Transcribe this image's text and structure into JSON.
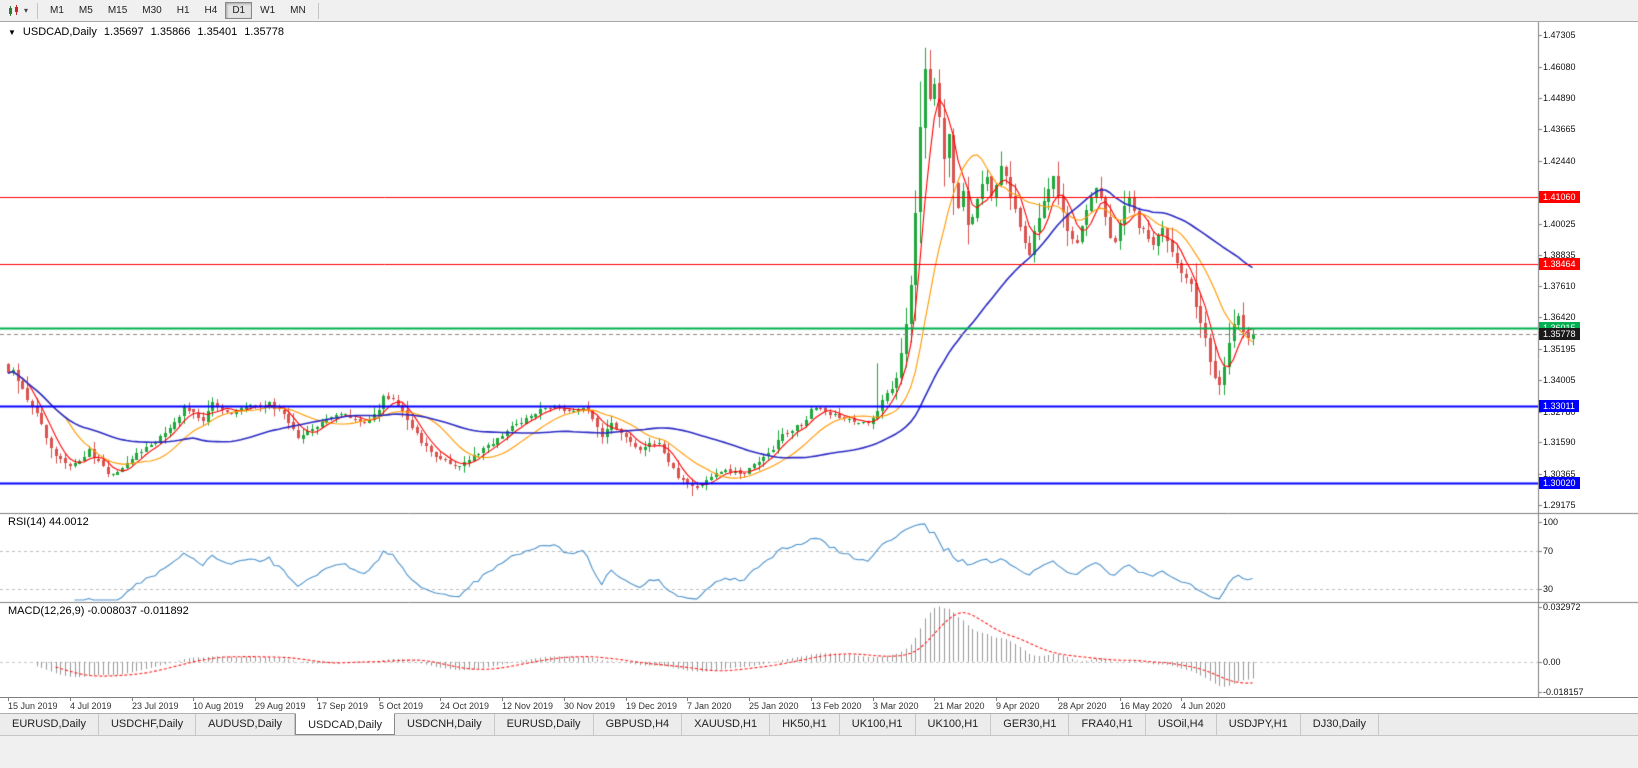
{
  "toolbar": {
    "timeframes": [
      "M1",
      "M5",
      "M15",
      "M30",
      "H1",
      "H4",
      "D1",
      "W1",
      "MN"
    ],
    "active_timeframe": "D1"
  },
  "chart_header": {
    "expander": "▼",
    "symbol": "USDCAD,Daily",
    "open": "1.35697",
    "high": "1.35866",
    "low": "1.35401",
    "close": "1.35778"
  },
  "colors": {
    "candle_up": "#1fa83c",
    "candle_down": "#d9534f",
    "ma_fast": "#ff0000",
    "ma_medium": "#ff9900",
    "ma_slow": "#2b2bc4",
    "current_price_line": "#8a8a8a",
    "current_price_tag_bg": "#1a1a1a",
    "rsi_line": "#4f94cd",
    "rsi_level_line": "#c0c0c0",
    "macd_hist": "#999999",
    "macd_signal": "#ff2020",
    "pane_border": "#808080"
  },
  "tabs": {
    "active_index": 3,
    "items": [
      {
        "label": "EURUSD,Daily"
      },
      {
        "label": "USDCHF,Daily"
      },
      {
        "label": "AUDUSD,Daily"
      },
      {
        "label": "USDCAD,Daily"
      },
      {
        "label": "USDCNH,Daily"
      },
      {
        "label": "EURUSD,Daily"
      },
      {
        "label": "GBPUSD,H4"
      },
      {
        "label": "XAUUSD,H1"
      },
      {
        "label": "HK50,H1"
      },
      {
        "label": "UK100,H1"
      },
      {
        "label": "UK100,H1"
      },
      {
        "label": "GER30,H1"
      },
      {
        "label": "FRA40,H1"
      },
      {
        "label": "USOil,H4"
      },
      {
        "label": "USDJPY,H1"
      },
      {
        "label": "DJ30,Daily"
      }
    ]
  },
  "chart_data": {
    "type": "candlestick",
    "symbol": "USDCAD",
    "timeframe": "Daily",
    "ohlc_display": {
      "open": 1.35697,
      "high": 1.35866,
      "low": 1.35401,
      "close": 1.35778
    },
    "visible_price_range": [
      1.2887,
      1.4781
    ],
    "y_ticks": [
      "1.47305",
      "1.46080",
      "1.44890",
      "1.43665",
      "1.42440",
      "1.40025",
      "1.38835",
      "1.37610",
      "1.36420",
      "1.35195",
      "1.34005",
      "1.32780",
      "1.31590",
      "1.30365",
      "1.29175"
    ],
    "x_ticks": [
      {
        "label": "15 Jun 2019",
        "i": 0
      },
      {
        "label": "4 Jul 2019",
        "i": 13
      },
      {
        "label": "23 Jul 2019",
        "i": 26
      },
      {
        "label": "10 Aug 2019",
        "i": 39
      },
      {
        "label": "29 Aug 2019",
        "i": 52
      },
      {
        "label": "17 Sep 2019",
        "i": 65
      },
      {
        "label": "5 Oct 2019",
        "i": 78
      },
      {
        "label": "24 Oct 2019",
        "i": 91
      },
      {
        "label": "12 Nov 2019",
        "i": 104
      },
      {
        "label": "30 Nov 2019",
        "i": 117
      },
      {
        "label": "19 Dec 2019",
        "i": 130
      },
      {
        "label": "7 Jan 2020",
        "i": 143
      },
      {
        "label": "25 Jan 2020",
        "i": 156
      },
      {
        "label": "13 Feb 2020",
        "i": 169
      },
      {
        "label": "3 Mar 2020",
        "i": 182
      },
      {
        "label": "21 Mar 2020",
        "i": 195
      },
      {
        "label": "9 Apr 2020",
        "i": 208
      },
      {
        "label": "28 Apr 2020",
        "i": 221
      },
      {
        "label": "16 May 2020",
        "i": 234
      },
      {
        "label": "4 Jun 2020",
        "i": 247
      }
    ],
    "candle_count": 263,
    "close_path_anchors": [
      [
        0,
        1.342
      ],
      [
        1,
        1.3432
      ],
      [
        3,
        1.336
      ],
      [
        5,
        1.33
      ],
      [
        7,
        1.323
      ],
      [
        9,
        1.314
      ],
      [
        11,
        1.309
      ],
      [
        13,
        1.307
      ],
      [
        15,
        1.309
      ],
      [
        17,
        1.313
      ],
      [
        19,
        1.308
      ],
      [
        21,
        1.3035
      ],
      [
        23,
        1.305
      ],
      [
        25,
        1.3075
      ],
      [
        27,
        1.311
      ],
      [
        29,
        1.3135
      ],
      [
        31,
        1.316
      ],
      [
        33,
        1.3195
      ],
      [
        35,
        1.324
      ],
      [
        37,
        1.33
      ],
      [
        39,
        1.327
      ],
      [
        41,
        1.3245
      ],
      [
        43,
        1.331
      ],
      [
        45,
        1.329
      ],
      [
        47,
        1.327
      ],
      [
        49,
        1.329
      ],
      [
        51,
        1.33
      ],
      [
        53,
        1.3295
      ],
      [
        55,
        1.331
      ],
      [
        57,
        1.328
      ],
      [
        59,
        1.324
      ],
      [
        61,
        1.318
      ],
      [
        63,
        1.3195
      ],
      [
        65,
        1.3215
      ],
      [
        67,
        1.325
      ],
      [
        69,
        1.326
      ],
      [
        71,
        1.3265
      ],
      [
        73,
        1.3245
      ],
      [
        75,
        1.3235
      ],
      [
        77,
        1.326
      ],
      [
        79,
        1.333
      ],
      [
        81,
        1.332
      ],
      [
        83,
        1.329
      ],
      [
        85,
        1.321
      ],
      [
        87,
        1.3165
      ],
      [
        89,
        1.313
      ],
      [
        91,
        1.3095
      ],
      [
        93,
        1.3075
      ],
      [
        95,
        1.3065
      ],
      [
        97,
        1.309
      ],
      [
        99,
        1.312
      ],
      [
        101,
        1.3145
      ],
      [
        103,
        1.318
      ],
      [
        105,
        1.3205
      ],
      [
        107,
        1.323
      ],
      [
        109,
        1.3255
      ],
      [
        111,
        1.3275
      ],
      [
        113,
        1.329
      ],
      [
        115,
        1.33
      ],
      [
        117,
        1.3285
      ],
      [
        119,
        1.328
      ],
      [
        121,
        1.33
      ],
      [
        123,
        1.324
      ],
      [
        125,
        1.3175
      ],
      [
        127,
        1.323
      ],
      [
        129,
        1.32
      ],
      [
        131,
        1.3165
      ],
      [
        133,
        1.3135
      ],
      [
        135,
        1.315
      ],
      [
        137,
        1.316
      ],
      [
        139,
        1.308
      ],
      [
        141,
        1.302
      ],
      [
        143,
        1.299
      ],
      [
        145,
        1.2985
      ],
      [
        147,
        1.301
      ],
      [
        149,
        1.3035
      ],
      [
        151,
        1.305
      ],
      [
        153,
        1.3045
      ],
      [
        155,
        1.304
      ],
      [
        157,
        1.307
      ],
      [
        159,
        1.31
      ],
      [
        161,
        1.313
      ],
      [
        163,
        1.319
      ],
      [
        165,
        1.3205
      ],
      [
        167,
        1.323
      ],
      [
        169,
        1.328
      ],
      [
        171,
        1.329
      ],
      [
        173,
        1.327
      ],
      [
        175,
        1.3255
      ],
      [
        177,
        1.3245
      ],
      [
        179,
        1.3235
      ],
      [
        181,
        1.3225
      ],
      [
        183,
        1.329
      ],
      [
        185,
        1.334
      ],
      [
        187,
        1.339
      ],
      [
        189,
        1.362
      ],
      [
        190,
        1.378
      ],
      [
        191,
        1.405
      ],
      [
        192,
        1.438
      ],
      [
        193,
        1.46
      ],
      [
        194,
        1.448
      ],
      [
        195,
        1.455
      ],
      [
        196,
        1.442
      ],
      [
        197,
        1.425
      ],
      [
        198,
        1.434
      ],
      [
        199,
        1.416
      ],
      [
        200,
        1.406
      ],
      [
        201,
        1.412
      ],
      [
        202,
        1.399
      ],
      [
        203,
        1.403
      ],
      [
        204,
        1.409
      ],
      [
        205,
        1.415
      ],
      [
        206,
        1.419
      ],
      [
        207,
        1.41
      ],
      [
        208,
        1.415
      ],
      [
        209,
        1.422
      ],
      [
        210,
        1.419
      ],
      [
        211,
        1.412
      ],
      [
        212,
        1.405
      ],
      [
        213,
        1.399
      ],
      [
        214,
        1.394
      ],
      [
        215,
        1.389
      ],
      [
        216,
        1.396
      ],
      [
        217,
        1.404
      ],
      [
        218,
        1.409
      ],
      [
        219,
        1.414
      ],
      [
        220,
        1.418
      ],
      [
        221,
        1.412
      ],
      [
        222,
        1.406
      ],
      [
        223,
        1.399
      ],
      [
        224,
        1.395
      ],
      [
        225,
        1.393
      ],
      [
        226,
        1.399
      ],
      [
        227,
        1.406
      ],
      [
        228,
        1.411
      ],
      [
        229,
        1.414
      ],
      [
        230,
        1.41
      ],
      [
        231,
        1.402
      ],
      [
        232,
        1.395
      ],
      [
        233,
        1.3925
      ],
      [
        234,
        1.399
      ],
      [
        235,
        1.406
      ],
      [
        236,
        1.41
      ],
      [
        237,
        1.406
      ],
      [
        238,
        1.4
      ],
      [
        239,
        1.397
      ],
      [
        240,
        1.394
      ],
      [
        241,
        1.392
      ],
      [
        242,
        1.396
      ],
      [
        243,
        1.399
      ],
      [
        244,
        1.395
      ],
      [
        245,
        1.39
      ],
      [
        246,
        1.386
      ],
      [
        247,
        1.382
      ],
      [
        248,
        1.379
      ],
      [
        249,
        1.376
      ],
      [
        250,
        1.37
      ],
      [
        251,
        1.364
      ],
      [
        252,
        1.356
      ],
      [
        253,
        1.348
      ],
      [
        254,
        1.342
      ],
      [
        255,
        1.338
      ],
      [
        256,
        1.344
      ],
      [
        257,
        1.353
      ],
      [
        258,
        1.36
      ],
      [
        259,
        1.3645
      ],
      [
        260,
        1.36
      ],
      [
        261,
        1.356
      ],
      [
        262,
        1.35778
      ]
    ],
    "extremes": [
      {
        "i": 183,
        "high": 1.3464
      },
      {
        "i": 193,
        "high": 1.4668
      },
      {
        "i": 144,
        "low": 1.2952
      },
      {
        "i": 255,
        "low": 1.3342
      },
      {
        "i": 259,
        "high": 1.3658
      }
    ],
    "moving_averages": [
      {
        "name": "fast",
        "period": 5,
        "color": "#ff0000"
      },
      {
        "name": "medium",
        "period": 13,
        "color": "#ff9900"
      },
      {
        "name": "slow",
        "period": 40,
        "color": "#2b2bc4"
      }
    ],
    "horizontal_levels": [
      {
        "value": 1.4106,
        "label": "1.41060",
        "color": "#ff0000",
        "width": 1
      },
      {
        "value": 1.38464,
        "label": "1.38464",
        "color": "#ff0000",
        "width": 1
      },
      {
        "value": 1.36015,
        "label": "1.36015",
        "color": "#00b050",
        "width": 2
      },
      {
        "value": 1.33011,
        "label": "1.33011",
        "color": "#0000ff",
        "width": 2
      },
      {
        "value": 1.3002,
        "label": "1.30020",
        "color": "#0000ff",
        "width": 2
      }
    ],
    "current_price": {
      "value": 1.35778,
      "label": "1.35778"
    },
    "rsi": {
      "title": "RSI(14) 44.0012",
      "period": 14,
      "current": 44.0012,
      "levels": [
        70,
        30
      ],
      "scale_labels": [
        "100",
        "70",
        "30"
      ]
    },
    "macd": {
      "title": "MACD(12,26,9) -0.008037 -0.011892",
      "fast": 12,
      "slow": 26,
      "signal": 9,
      "current": -0.008037,
      "signal_current": -0.011892,
      "scale_labels": [
        "0.032972",
        "0.00",
        "-0.018157"
      ]
    }
  }
}
